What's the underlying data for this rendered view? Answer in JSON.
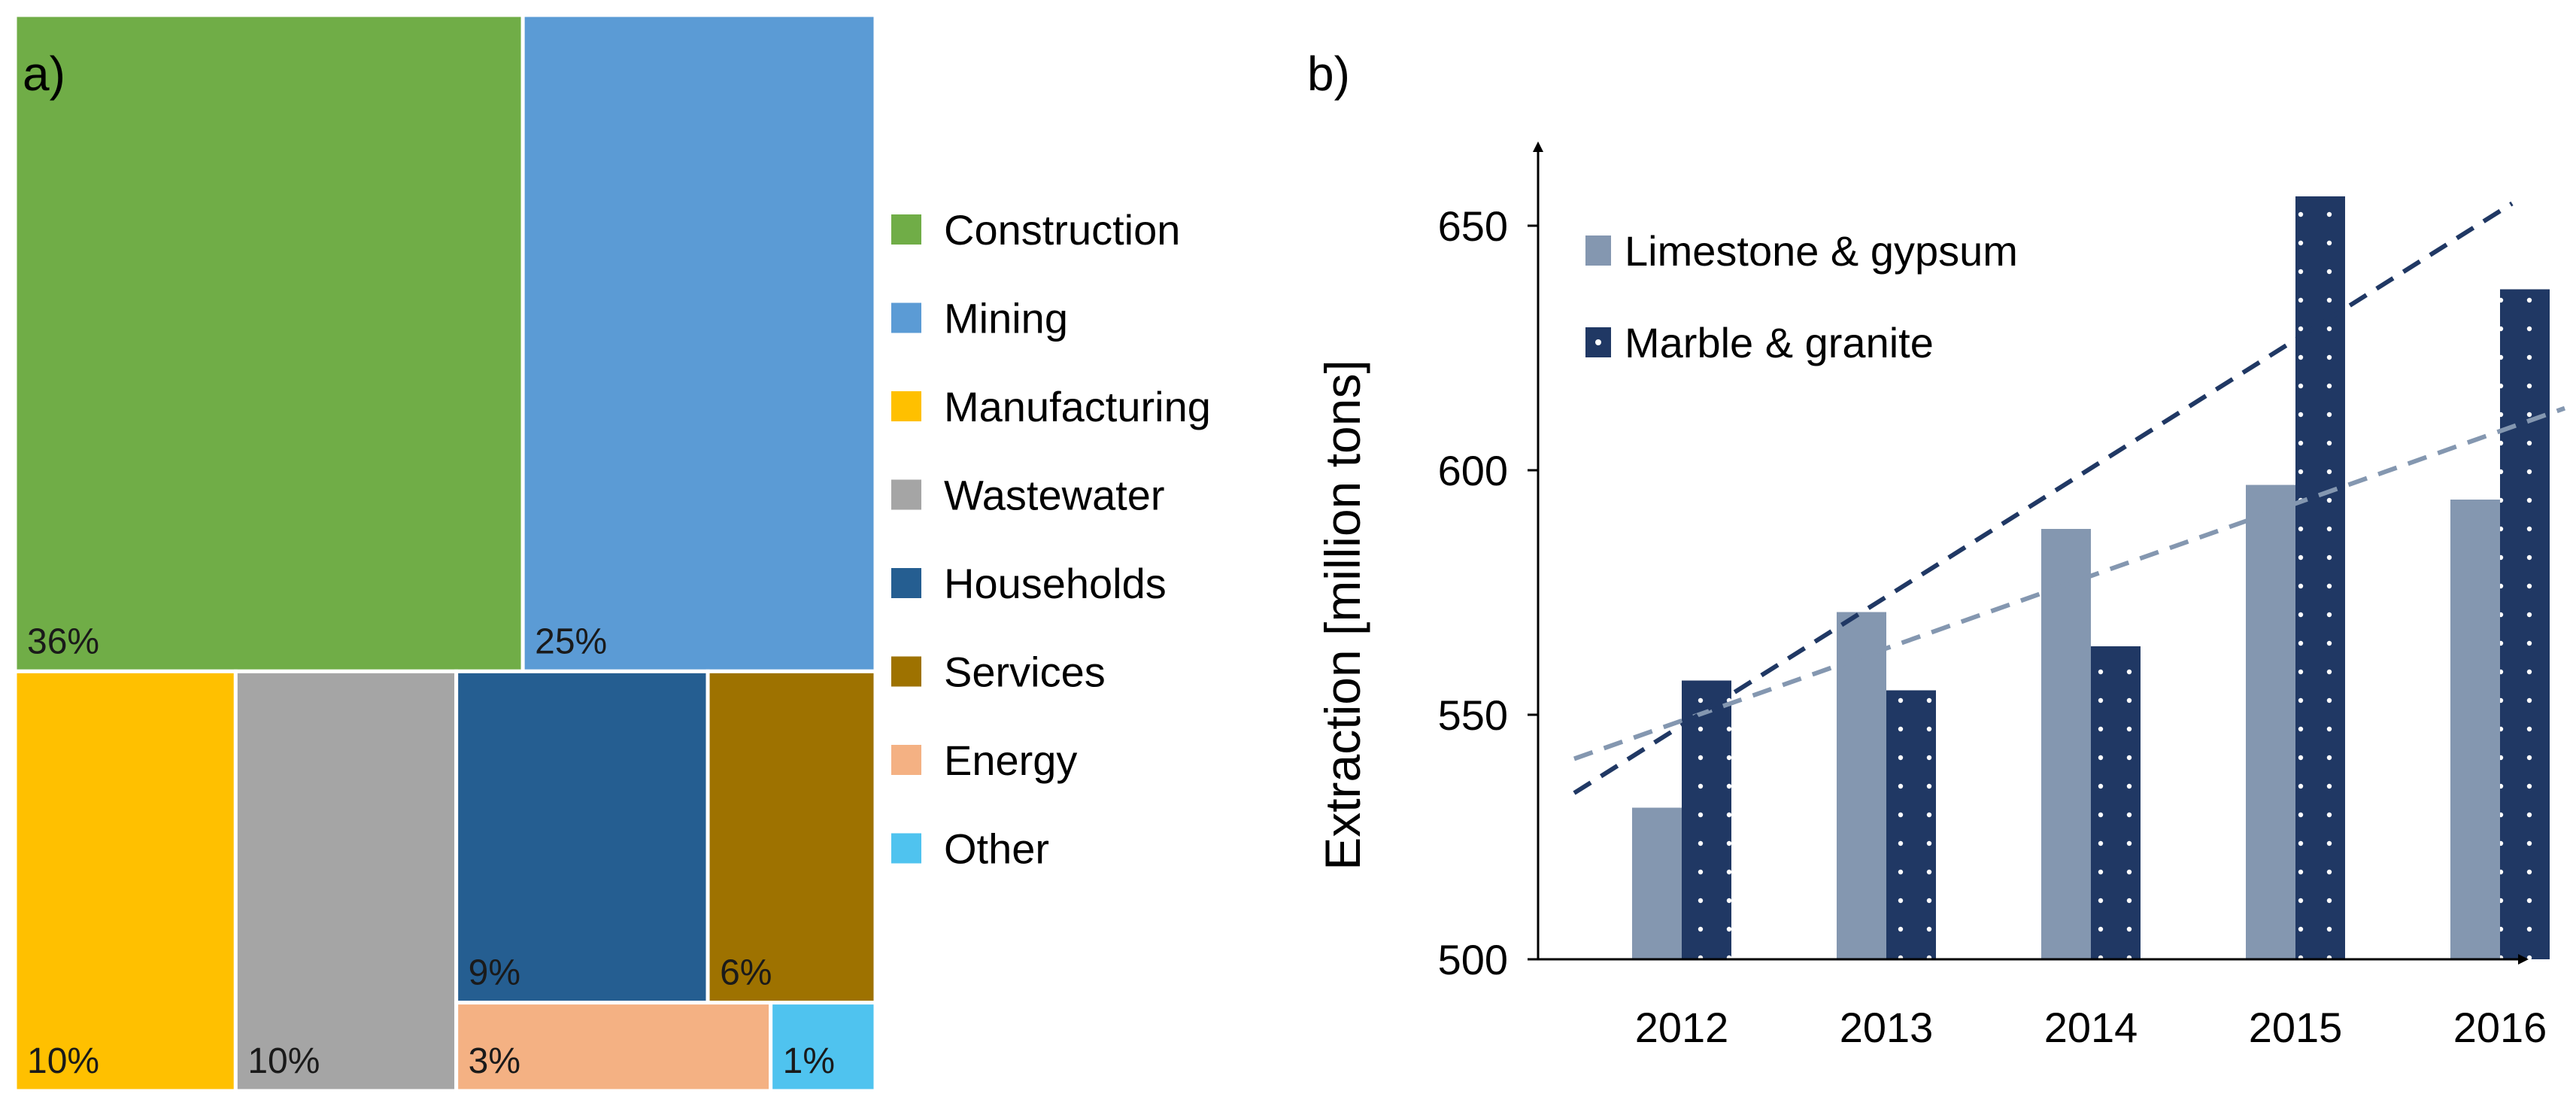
{
  "chart_data": [
    {
      "panel_label": "a)",
      "type": "treemap",
      "title": "",
      "legend_position": "right",
      "items": [
        {
          "name": "Construction",
          "value": 36,
          "label": "36%",
          "color": "#70AD47"
        },
        {
          "name": "Mining",
          "value": 25,
          "label": "25%",
          "color": "#5B9BD5"
        },
        {
          "name": "Manufacturing",
          "value": 10,
          "label": "10%",
          "color": "#FFC000"
        },
        {
          "name": "Wastewater",
          "value": 10,
          "label": "10%",
          "color": "#A5A5A5"
        },
        {
          "name": "Households",
          "value": 9,
          "label": "9%",
          "color": "#255E91"
        },
        {
          "name": "Services",
          "value": 6,
          "label": "6%",
          "color": "#9E7200"
        },
        {
          "name": "Energy",
          "value": 3,
          "label": "3%",
          "color": "#F4B183"
        },
        {
          "name": "Other",
          "value": 1,
          "label": "1%",
          "color": "#4FC3EF"
        }
      ]
    },
    {
      "panel_label": "b)",
      "type": "bar",
      "title": "",
      "xlabel": "",
      "ylabel": "Extraction [million tons]",
      "ylim": [
        500,
        665
      ],
      "yticks": [
        500,
        550,
        600,
        650
      ],
      "grid": false,
      "legend_position": "top-left",
      "categories": [
        "2012",
        "2013",
        "2014",
        "2015",
        "2016"
      ],
      "series": [
        {
          "name": "Limestone & gypsum",
          "values": [
            531,
            571,
            588,
            597,
            594
          ],
          "color": "#8497B0",
          "pattern": "solid",
          "trendline": [
            541,
            608
          ]
        },
        {
          "name": "Marble & granite",
          "values": [
            557,
            555,
            564,
            656,
            637
          ],
          "color": "#203864",
          "pattern": "dotted",
          "trendline": [
            534,
            653
          ]
        }
      ]
    }
  ]
}
